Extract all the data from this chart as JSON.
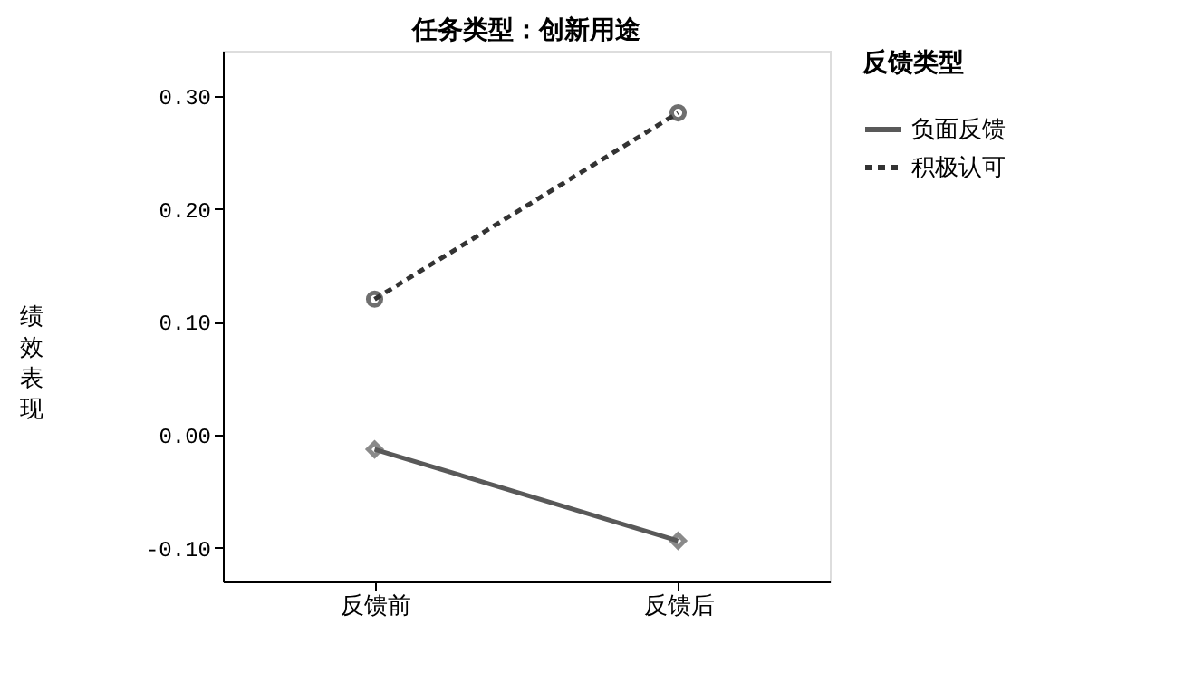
{
  "chart_data": {
    "type": "line",
    "title": "任务类型：创新用途",
    "ylabel": "绩效表现",
    "legend_title": "反馈类型",
    "categories": [
      "反馈前",
      "反馈后"
    ],
    "series": [
      {
        "name": "负面反馈",
        "color": "#595959",
        "values": [
          -0.013,
          -0.094
        ],
        "line_style": "solid",
        "marker": "diamond"
      },
      {
        "name": "积极认可",
        "color": "#333333",
        "values": [
          0.12,
          0.285
        ],
        "line_style": "dashed",
        "marker": "circle"
      }
    ],
    "ylim": [
      -0.13,
      0.34
    ],
    "yticks": [
      {
        "value": -0.1,
        "label": "-0.10"
      },
      {
        "value": 0.0,
        "label": "0.00"
      },
      {
        "value": 0.1,
        "label": "0.10"
      },
      {
        "value": 0.2,
        "label": "0.20"
      },
      {
        "value": 0.3,
        "label": "0.30"
      }
    ],
    "grid": false,
    "legend": "top right"
  }
}
